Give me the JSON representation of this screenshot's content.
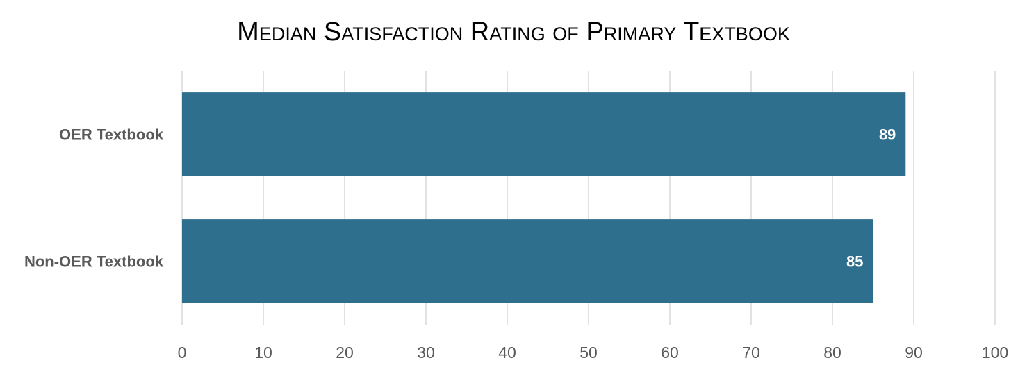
{
  "chart_data": {
    "type": "bar",
    "orientation": "horizontal",
    "title": "Median Satisfaction Rating of Primary Textbook",
    "xlabel": "",
    "ylabel": "",
    "categories": [
      "OER Textbook",
      "Non-OER Textbook"
    ],
    "values": [
      89,
      85
    ],
    "data_labels": [
      "89",
      "85"
    ],
    "xlim": [
      0,
      100
    ],
    "x_ticks": [
      "0",
      "10",
      "20",
      "30",
      "40",
      "50",
      "60",
      "70",
      "80",
      "90",
      "100"
    ],
    "grid": true,
    "legend": "none",
    "bar_color": "#2e6f8e"
  }
}
